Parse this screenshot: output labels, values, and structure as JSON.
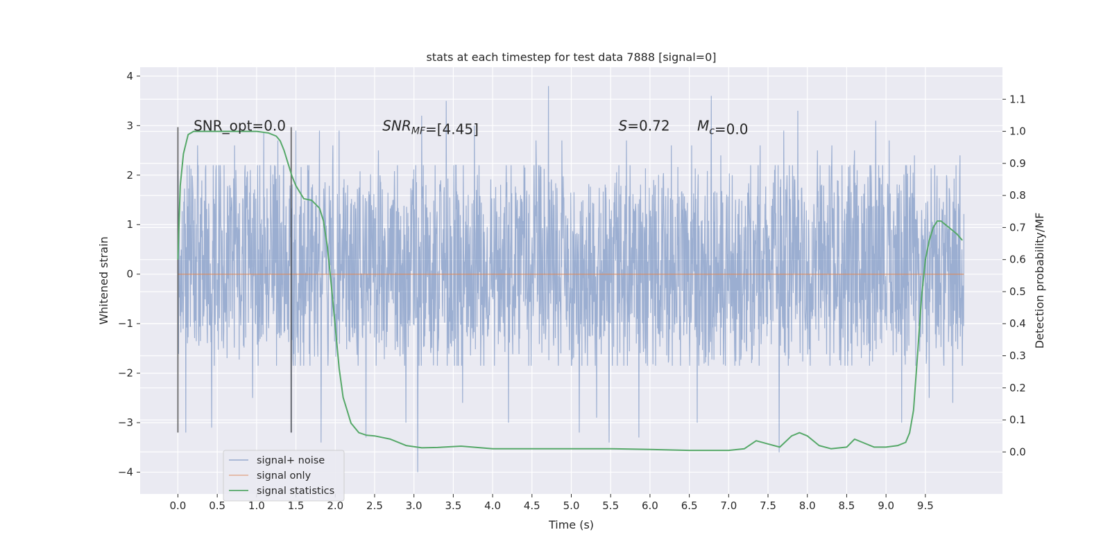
{
  "chart_data": {
    "type": "line",
    "title": "stats at each timestep for test data 7888 [signal=0]",
    "xlabel": "Time (s)",
    "ylabel": "Whitened strain",
    "y2label": "Detection probability/MF",
    "xlim": [
      -0.48,
      10.48
    ],
    "ylim": [
      -4.44,
      4.18
    ],
    "y2lim": [
      -0.131,
      1.2
    ],
    "x_ticks": [
      0.0,
      0.5,
      1.0,
      1.5,
      2.0,
      2.5,
      3.0,
      3.5,
      4.0,
      4.5,
      5.0,
      5.5,
      6.0,
      6.5,
      7.0,
      7.5,
      8.0,
      8.5,
      9.0,
      9.5
    ],
    "x_tick_labels": [
      "0.0",
      "0.5",
      "1.0",
      "1.5",
      "2.0",
      "2.5",
      "3.0",
      "3.5",
      "4.0",
      "4.5",
      "5.0",
      "5.5",
      "6.0",
      "6.5",
      "7.0",
      "7.5",
      "8.0",
      "8.5",
      "9.0",
      "9.5"
    ],
    "y_ticks": [
      -4,
      -3,
      -2,
      -1,
      0,
      1,
      2,
      3,
      4
    ],
    "y_tick_labels": [
      "−4",
      "−3",
      "−2",
      "−1",
      "0",
      "1",
      "2",
      "3",
      "4"
    ],
    "y2_ticks": [
      0.0,
      0.1,
      0.2,
      0.3,
      0.4,
      0.5,
      0.6,
      0.7,
      0.8,
      0.9,
      1.0,
      1.1
    ],
    "y2_tick_labels": [
      "0.0",
      "0.1",
      "0.2",
      "0.3",
      "0.4",
      "0.5",
      "0.6",
      "0.7",
      "0.8",
      "0.9",
      "1.0",
      "1.1"
    ],
    "grid": true,
    "legend_position": "bottom-left",
    "annotations": [
      {
        "name": "snr-opt",
        "parts": [
          {
            "t": "SNR_opt=0.0"
          }
        ],
        "x": 0.2,
        "y": 3.0
      },
      {
        "name": "snr-mf",
        "parts": [
          {
            "t": "SNR",
            "i": true
          },
          {
            "t": "MF",
            "i": true,
            "sub": true
          },
          {
            "t": "=[4.45]"
          }
        ],
        "x": 2.6,
        "y": 3.0
      },
      {
        "name": "s-value",
        "parts": [
          {
            "t": "S",
            "i": true
          },
          {
            "t": "=0.72"
          }
        ],
        "x": 5.6,
        "y": 3.0
      },
      {
        "name": "mc-value",
        "parts": [
          {
            "t": "M",
            "i": true
          },
          {
            "t": "c",
            "i": true,
            "sub": true
          },
          {
            "t": "=0.0"
          }
        ],
        "x": 6.6,
        "y": 3.0
      }
    ],
    "vertical_markers": [
      {
        "x": 0.0,
        "y_range": [
          -3.2,
          2.97
        ]
      },
      {
        "x": 1.44,
        "y_range": [
          -3.2,
          2.97
        ]
      }
    ],
    "series": [
      {
        "name": "signal+ noise",
        "axis": "left",
        "color": "#4c72b0",
        "opacity": 0.5,
        "description": "whitened strain noise over 0-10 s, bulk within roughly -1.8 to 2.2",
        "x_range": [
          0.0,
          9.99
        ],
        "peaks": [
          [
            0.0,
            2.1
          ],
          [
            0.1,
            -3.2
          ],
          [
            0.25,
            2.6
          ],
          [
            0.43,
            -3.1
          ],
          [
            0.72,
            2.6
          ],
          [
            0.95,
            -2.5
          ],
          [
            1.09,
            2.85
          ],
          [
            1.27,
            2.7
          ],
          [
            1.44,
            -3.2
          ],
          [
            1.5,
            2.9
          ],
          [
            1.8,
            2.9
          ],
          [
            1.82,
            -3.4
          ],
          [
            1.97,
            2.6
          ],
          [
            2.05,
            2.9
          ],
          [
            2.39,
            -3.3
          ],
          [
            2.55,
            2.5
          ],
          [
            2.9,
            -3.0
          ],
          [
            3.05,
            -4.0
          ],
          [
            3.1,
            3.2
          ],
          [
            3.41,
            3.5
          ],
          [
            3.62,
            -2.6
          ],
          [
            3.77,
            3.0
          ],
          [
            4.2,
            -3.0
          ],
          [
            4.55,
            2.7
          ],
          [
            4.71,
            3.8
          ],
          [
            4.88,
            2.7
          ],
          [
            5.1,
            -3.2
          ],
          [
            5.32,
            -2.9
          ],
          [
            5.48,
            -3.4
          ],
          [
            5.86,
            -3.3
          ],
          [
            5.7,
            2.7
          ],
          [
            6.27,
            2.6
          ],
          [
            6.53,
            2.6
          ],
          [
            6.6,
            -3.0
          ],
          [
            6.78,
            3.6
          ],
          [
            6.9,
            2.4
          ],
          [
            7.4,
            2.6
          ],
          [
            7.64,
            -3.6
          ],
          [
            7.7,
            2.9
          ],
          [
            7.88,
            3.3
          ],
          [
            8.13,
            2.5
          ],
          [
            8.31,
            2.6
          ],
          [
            8.6,
            2.5
          ],
          [
            8.87,
            3.1
          ],
          [
            9.04,
            2.7
          ],
          [
            9.2,
            -3.0
          ],
          [
            9.36,
            2.4
          ],
          [
            9.55,
            -2.5
          ],
          [
            9.77,
            2.0
          ],
          [
            9.85,
            -2.6
          ],
          [
            9.94,
            2.4
          ]
        ]
      },
      {
        "name": "signal only",
        "axis": "left",
        "color": "#dd8452",
        "x": [
          0.0,
          9.99
        ],
        "y": [
          0.0,
          0.0
        ]
      },
      {
        "name": "signal statistics",
        "axis": "right",
        "color": "#55a868",
        "x": [
          0.0,
          0.03,
          0.07,
          0.13,
          0.2,
          0.3,
          0.5,
          0.8,
          1.0,
          1.15,
          1.25,
          1.3,
          1.35,
          1.4,
          1.45,
          1.5,
          1.55,
          1.6,
          1.7,
          1.8,
          1.85,
          1.9,
          1.95,
          2.0,
          2.05,
          2.1,
          2.15,
          2.2,
          2.3,
          2.4,
          2.5,
          2.7,
          2.9,
          3.1,
          3.3,
          3.6,
          4.0,
          4.5,
          5.0,
          5.5,
          6.0,
          6.5,
          7.0,
          7.2,
          7.35,
          7.5,
          7.65,
          7.8,
          7.9,
          8.0,
          8.15,
          8.3,
          8.5,
          8.6,
          8.7,
          8.85,
          9.0,
          9.15,
          9.25,
          9.3,
          9.35,
          9.4,
          9.45,
          9.5,
          9.55,
          9.6,
          9.65,
          9.7,
          9.75,
          9.8,
          9.9,
          9.97
        ],
        "y": [
          0.6,
          0.83,
          0.93,
          0.99,
          1.0,
          1.0,
          1.0,
          1.0,
          1.0,
          0.995,
          0.985,
          0.97,
          0.94,
          0.9,
          0.86,
          0.83,
          0.81,
          0.79,
          0.785,
          0.76,
          0.72,
          0.64,
          0.52,
          0.39,
          0.26,
          0.17,
          0.13,
          0.09,
          0.06,
          0.052,
          0.05,
          0.04,
          0.02,
          0.013,
          0.014,
          0.018,
          0.01,
          0.01,
          0.01,
          0.01,
          0.008,
          0.005,
          0.005,
          0.01,
          0.035,
          0.025,
          0.015,
          0.05,
          0.06,
          0.05,
          0.02,
          0.01,
          0.015,
          0.04,
          0.03,
          0.015,
          0.015,
          0.02,
          0.03,
          0.06,
          0.13,
          0.3,
          0.48,
          0.6,
          0.66,
          0.7,
          0.72,
          0.72,
          0.71,
          0.7,
          0.68,
          0.66
        ]
      }
    ]
  }
}
